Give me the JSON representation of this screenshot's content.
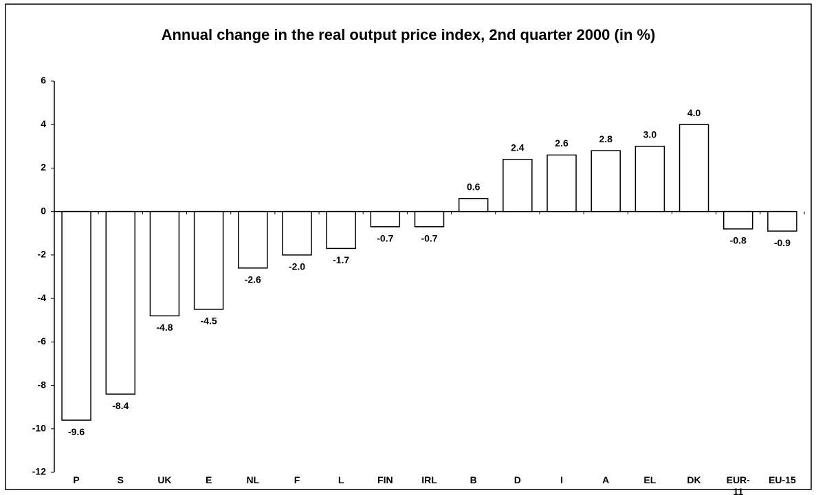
{
  "chart_data": {
    "type": "bar",
    "title": "Annual change in the real output price index, 2nd quarter 2000 (in %)",
    "categories": [
      "P",
      "S",
      "UK",
      "E",
      "NL",
      "F",
      "L",
      "FIN",
      "IRL",
      "B",
      "D",
      "I",
      "A",
      "EL",
      "DK",
      "EUR-11",
      "EU-15"
    ],
    "values": [
      -9.6,
      -8.4,
      -4.8,
      -4.5,
      -2.6,
      -2.0,
      -1.7,
      -0.7,
      -0.7,
      0.6,
      2.4,
      2.6,
      2.8,
      3.0,
      4.0,
      -0.8,
      -0.9
    ],
    "value_labels": [
      "-9.6",
      "-8.4",
      "-4.8",
      "-4.5",
      "-2.6",
      "-2.0",
      "-1.7",
      "-0.7",
      "-0.7",
      "0.6",
      "2.4",
      "2.6",
      "2.8",
      "3.0",
      "4.0",
      "-0.8",
      "-0.9"
    ],
    "color": "#ffffff",
    "ylim": [
      -12,
      6
    ],
    "yticks": [
      -12,
      -10,
      -8,
      -6,
      -4,
      -2,
      0,
      2,
      4,
      6
    ],
    "grid": false
  }
}
